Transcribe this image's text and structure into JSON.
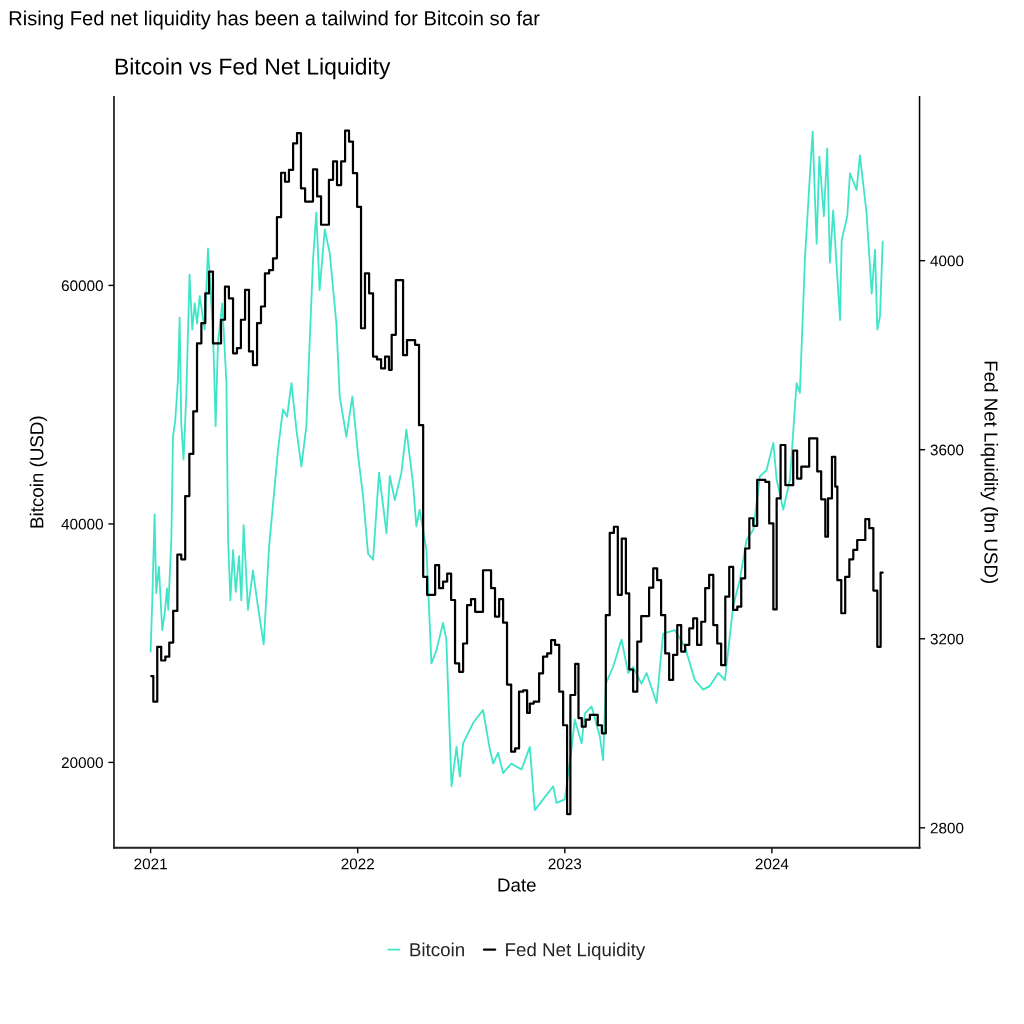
{
  "chart_data": {
    "type": "line",
    "title": "Rising Fed net liquidity has been a tailwind for Bitcoin so far",
    "subtitle": "Bitcoin vs Fed Net Liquidity",
    "xlabel": "Date",
    "ylabel": "Bitcoin (USD)",
    "y2label": "Fed Net Liquidity (bn USD)",
    "xlim": [
      2020.823,
      2024.713
    ],
    "xticks": [
      2021,
      2022,
      2023,
      2024
    ],
    "ylim": [
      12850,
      75830
    ],
    "yticks": [
      20000,
      40000,
      60000
    ],
    "y2lim": [
      2758,
      4347
    ],
    "y2ticks": [
      2800,
      3200,
      3600,
      4000
    ],
    "legend": "bottom",
    "series": [
      {
        "name": "Bitcoin",
        "color": "#3fe5c8",
        "axis": "y",
        "x": [
          2021.0,
          2021.008,
          2021.019,
          2021.027,
          2021.04,
          2021.056,
          2021.068,
          2021.079,
          2021.085,
          2021.1,
          2021.108,
          2021.119,
          2021.132,
          2021.14,
          2021.148,
          2021.159,
          2021.172,
          2021.188,
          2021.201,
          2021.213,
          2021.224,
          2021.237,
          2021.261,
          2021.277,
          2021.301,
          2021.314,
          2021.325,
          2021.346,
          2021.366,
          2021.374,
          2021.385,
          2021.398,
          2021.411,
          2021.427,
          2021.438,
          2021.449,
          2021.47,
          2021.494,
          2021.518,
          2021.546,
          2021.572,
          2021.602,
          2021.615,
          2021.639,
          2021.659,
          2021.68,
          2021.704,
          2021.728,
          2021.752,
          2021.768,
          2021.784,
          2021.8,
          2021.816,
          2021.841,
          2021.865,
          2021.897,
          2021.913,
          2021.945,
          2021.974,
          2022.002,
          2022.026,
          2022.05,
          2022.074,
          2022.103,
          2022.139,
          2022.155,
          2022.179,
          2022.211,
          2022.235,
          2022.267,
          2022.283,
          2022.299,
          2022.332,
          2022.356,
          2022.38,
          2022.412,
          2022.428,
          2022.453,
          2022.477,
          2022.493,
          2022.509,
          2022.557,
          2022.605,
          2022.638,
          2022.654,
          2022.678,
          2022.702,
          2022.742,
          2022.791,
          2022.831,
          2022.855,
          2022.895,
          2022.944,
          2022.96,
          2023.0,
          2023.032,
          2023.048,
          2023.081,
          2023.097,
          2023.129,
          2023.169,
          2023.185,
          2023.198,
          2023.233,
          2023.274,
          2023.306,
          2023.33,
          2023.37,
          2023.395,
          2023.443,
          2023.475,
          2023.531,
          2023.58,
          2023.628,
          2023.668,
          2023.7,
          2023.741,
          2023.773,
          2023.813,
          2023.845,
          2023.878,
          2023.91,
          2023.942,
          2023.974,
          2024.007,
          2024.023,
          2024.055,
          2024.087,
          2024.119,
          2024.135,
          2024.16,
          2024.184,
          2024.197,
          2024.208,
          2024.216,
          2024.229,
          2024.251,
          2024.267,
          2024.28,
          2024.296,
          2024.316,
          2024.329,
          2024.337,
          2024.364,
          2024.377,
          2024.409,
          2024.425,
          2024.457,
          2024.482,
          2024.498,
          2024.509,
          2024.522,
          2024.535
        ],
        "values": [
          29300,
          33600,
          40800,
          34200,
          36400,
          31100,
          32500,
          34600,
          32800,
          38700,
          47300,
          48700,
          52100,
          57300,
          48400,
          45400,
          50700,
          60900,
          56300,
          58500,
          56800,
          59100,
          56300,
          63100,
          56300,
          48200,
          55200,
          58500,
          51800,
          38700,
          33600,
          37800,
          34300,
          37300,
          33600,
          39900,
          32800,
          36100,
          33100,
          29900,
          38100,
          43700,
          46200,
          49600,
          49000,
          51800,
          47900,
          44800,
          48200,
          55200,
          62100,
          66100,
          59600,
          64700,
          62700,
          56800,
          50700,
          47300,
          50700,
          45700,
          42300,
          37500,
          37000,
          44300,
          39200,
          44000,
          42000,
          44300,
          47900,
          43400,
          39800,
          41200,
          37800,
          28300,
          29400,
          31700,
          30300,
          18000,
          21300,
          18800,
          21600,
          23300,
          24400,
          21100,
          19900,
          20800,
          19100,
          19900,
          19400,
          21300,
          16000,
          16900,
          18000,
          16600,
          16900,
          21100,
          23600,
          21600,
          24100,
          24700,
          22200,
          20200,
          26600,
          28000,
          30300,
          27500,
          28000,
          26600,
          27500,
          25000,
          30800,
          31100,
          29700,
          26900,
          26100,
          26400,
          27500,
          26900,
          33100,
          35300,
          38700,
          39500,
          44000,
          44500,
          46800,
          43700,
          41200,
          43700,
          51800,
          51000,
          62400,
          69400,
          72900,
          67200,
          63500,
          70800,
          65800,
          71500,
          61900,
          66300,
          60700,
          57100,
          63800,
          65800,
          69400,
          68000,
          70900,
          66100,
          59300,
          63000,
          56300,
          57400,
          63700
        ]
      },
      {
        "name": "Fed Net Liquidity",
        "color": "#000000",
        "type": "step",
        "axis": "y2",
        "x": [
          2021.003,
          2021.013,
          2021.032,
          2021.051,
          2021.071,
          2021.09,
          2021.109,
          2021.129,
          2021.148,
          2021.167,
          2021.187,
          2021.206,
          2021.224,
          2021.245,
          2021.264,
          2021.282,
          2021.301,
          2021.34,
          2021.359,
          2021.378,
          2021.398,
          2021.417,
          2021.436,
          2021.456,
          2021.475,
          2021.494,
          2021.514,
          2021.533,
          2021.552,
          2021.572,
          2021.591,
          2021.61,
          2021.63,
          2021.649,
          2021.668,
          2021.688,
          2021.707,
          2021.726,
          2021.746,
          2021.784,
          2021.804,
          2021.823,
          2021.861,
          2021.881,
          2021.9,
          2021.92,
          2021.939,
          2021.958,
          2021.977,
          2021.997,
          2022.016,
          2022.035,
          2022.055,
          2022.074,
          2022.093,
          2022.113,
          2022.132,
          2022.151,
          2022.164,
          2022.184,
          2022.219,
          2022.238,
          2022.277,
          2022.296,
          2022.316,
          2022.335,
          2022.374,
          2022.393,
          2022.412,
          2022.432,
          2022.451,
          2022.47,
          2022.49,
          2022.509,
          2022.528,
          2022.547,
          2022.567,
          2022.605,
          2022.644,
          2022.663,
          2022.683,
          2022.702,
          2022.721,
          2022.741,
          2022.76,
          2022.779,
          2022.799,
          2022.818,
          2022.831,
          2022.85,
          2022.876,
          2022.895,
          2022.915,
          2022.934,
          2022.953,
          2022.973,
          2022.992,
          2023.011,
          2023.027,
          2023.05,
          2023.066,
          2023.082,
          2023.101,
          2023.121,
          2023.159,
          2023.179,
          2023.198,
          2023.217,
          2023.237,
          2023.256,
          2023.275,
          2023.295,
          2023.311,
          2023.33,
          2023.35,
          2023.369,
          2023.407,
          2023.427,
          2023.446,
          2023.465,
          2023.485,
          2023.504,
          2023.523,
          2023.543,
          2023.562,
          2023.581,
          2023.601,
          2023.62,
          2023.639,
          2023.659,
          2023.678,
          2023.697,
          2023.717,
          2023.736,
          2023.755,
          2023.775,
          2023.794,
          2023.813,
          2023.833,
          2023.852,
          2023.871,
          2023.891,
          2023.91,
          2023.929,
          2023.968,
          2023.987,
          2024.007,
          2024.023,
          2024.042,
          2024.065,
          2024.103,
          2024.122,
          2024.142,
          2024.18,
          2024.219,
          2024.238,
          2024.258,
          2024.271,
          2024.29,
          2024.306,
          2024.316,
          2024.335,
          2024.354,
          2024.374,
          2024.393,
          2024.412,
          2024.451,
          2024.47,
          2024.49,
          2024.509,
          2024.525,
          2024.535
        ],
        "values": [
          3121,
          3067,
          3183,
          3154,
          3162,
          3192,
          3259,
          3378,
          3368,
          3502,
          3591,
          3681,
          3825,
          3868,
          3931,
          3977,
          3825,
          3875,
          3945,
          3920,
          3804,
          3815,
          3875,
          3938,
          3808,
          3779,
          3868,
          3903,
          3973,
          3980,
          4005,
          4092,
          4186,
          4167,
          4192,
          4248,
          4270,
          4153,
          4125,
          4193,
          4136,
          4076,
          4171,
          4210,
          4160,
          4210,
          4275,
          4252,
          4185,
          4114,
          3857,
          3973,
          3931,
          3797,
          3791,
          3772,
          3797,
          3769,
          3843,
          3959,
          3800,
          3832,
          3822,
          3652,
          3331,
          3293,
          3356,
          3307,
          3321,
          3338,
          3282,
          3148,
          3130,
          3190,
          3271,
          3284,
          3257,
          3345,
          3307,
          3247,
          3284,
          3234,
          3103,
          2961,
          2968,
          3088,
          3091,
          3043,
          3063,
          3067,
          3127,
          3162,
          3169,
          3197,
          3187,
          3088,
          3017,
          2829,
          3081,
          3147,
          3032,
          3014,
          3029,
          3039,
          3017,
          3000,
          3250,
          3424,
          3437,
          3293,
          3412,
          3296,
          3135,
          3088,
          3194,
          3248,
          3308,
          3349,
          3324,
          3250,
          3169,
          3113,
          3166,
          3229,
          3173,
          3187,
          3222,
          3243,
          3187,
          3236,
          3307,
          3335,
          3229,
          3190,
          3144,
          3289,
          3352,
          3261,
          3268,
          3328,
          3391,
          3455,
          3439,
          3536,
          3532,
          3444,
          3262,
          3497,
          3610,
          3525,
          3598,
          3539,
          3564,
          3624,
          3554,
          3495,
          3416,
          3497,
          3585,
          3522,
          3324,
          3254,
          3331,
          3368,
          3388,
          3409,
          3453,
          3434,
          3302,
          3183,
          3340,
          3340
        ]
      }
    ]
  }
}
